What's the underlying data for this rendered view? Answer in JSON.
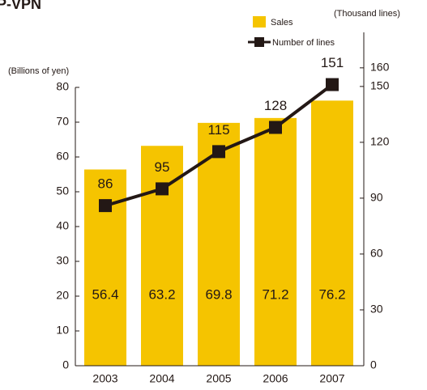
{
  "chart_data": {
    "type": "bar_line",
    "title": "P-VPN",
    "ylabel": "(Billions of yen)",
    "y2label": "(Thousand lines)",
    "categories": [
      "2003",
      "2004",
      "2005",
      "2006",
      "2007"
    ],
    "series": [
      {
        "name": "Sales",
        "type": "bar",
        "color": "#f5c400",
        "values": [
          56.4,
          63.2,
          69.8,
          71.2,
          76.2
        ]
      },
      {
        "name": "Number of lines",
        "type": "line",
        "axis": "y2",
        "color": "#231815",
        "values": [
          86,
          95,
          115,
          128,
          151
        ]
      }
    ],
    "ylim": [
      0,
      80
    ],
    "yticks": [
      0,
      10,
      20,
      30,
      40,
      50,
      60,
      70,
      80
    ],
    "y2lim": [
      0,
      160
    ],
    "y2ticks": [
      0,
      30,
      60,
      90,
      120,
      150,
      160
    ]
  }
}
